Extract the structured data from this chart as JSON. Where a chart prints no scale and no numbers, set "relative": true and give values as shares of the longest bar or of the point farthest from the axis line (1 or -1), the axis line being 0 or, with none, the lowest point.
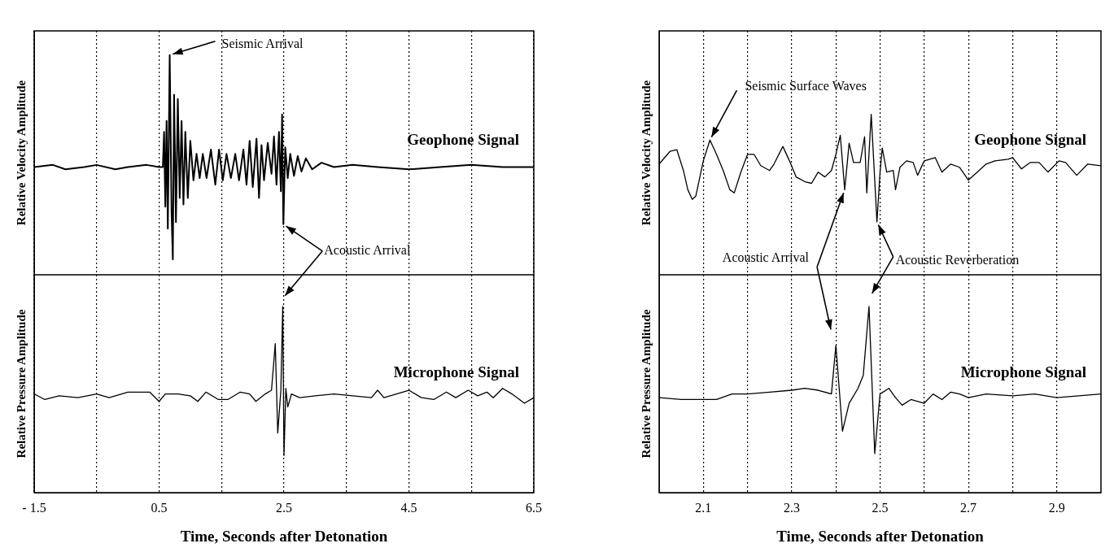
{
  "chart_data": [
    {
      "type": "line",
      "ylabel": "Relative Velocity Amplitude",
      "relative": true,
      "grid": "x",
      "tick_labels": false,
      "xlim": [
        -1.5,
        6.5
      ],
      "xticks": [
        -1.5,
        {
          "value": -0.5,
          "label": null
        },
        0.5,
        {
          "value": 1.5,
          "label": null
        },
        2.5,
        {
          "value": 3.5,
          "label": null
        },
        4.5,
        {
          "value": 5.5,
          "label": null
        },
        6.5
      ],
      "annotations": [
        {
          "text": "Seismic Arrival",
          "x": 0.67,
          "y": 1
        },
        {
          "text": "Acoustic Arrival",
          "x": 2.49,
          "y": 0.23
        }
      ],
      "series": [
        {
          "name": "Geophone Signal",
          "color": "#000000",
          "x": [
            -1.5,
            -1.2,
            -1.0,
            -0.7,
            -0.5,
            -0.2,
            0,
            0.3,
            0.5,
            0.56,
            0.58,
            0.6,
            0.62,
            0.64,
            0.67,
            0.7,
            0.72,
            0.74,
            0.77,
            0.8,
            0.83,
            0.86,
            0.89,
            0.92,
            0.96,
            1.0,
            1.05,
            1.1,
            1.15,
            1.2,
            1.26,
            1.33,
            1.4,
            1.46,
            1.52,
            1.58,
            1.65,
            1.72,
            1.78,
            1.85,
            1.9,
            1.95,
            2.0,
            2.06,
            2.1,
            2.14,
            2.18,
            2.24,
            2.3,
            2.34,
            2.38,
            2.42,
            2.45,
            2.47,
            2.49,
            2.52,
            2.56,
            2.6,
            2.66,
            2.72,
            2.78,
            2.85,
            2.95,
            3.1,
            3.3,
            3.6,
            4.0,
            4.5,
            5.0,
            5.5,
            6.0,
            6.5
          ],
          "values": [
            0.49,
            0.5,
            0.48,
            0.49,
            0.5,
            0.48,
            0.49,
            0.5,
            0.49,
            0.49,
            0.65,
            0.31,
            0.7,
            0.21,
            1.0,
            0.28,
            0.07,
            0.82,
            0.24,
            0.8,
            0.35,
            0.7,
            0.32,
            0.65,
            0.35,
            0.61,
            0.43,
            0.55,
            0.44,
            0.55,
            0.44,
            0.57,
            0.41,
            0.57,
            0.43,
            0.55,
            0.44,
            0.55,
            0.43,
            0.57,
            0.41,
            0.61,
            0.4,
            0.62,
            0.35,
            0.59,
            0.43,
            0.6,
            0.46,
            0.63,
            0.41,
            0.65,
            0.38,
            0.73,
            0.23,
            0.58,
            0.44,
            0.55,
            0.45,
            0.54,
            0.47,
            0.53,
            0.48,
            0.51,
            0.49,
            0.5,
            0.49,
            0.48,
            0.49,
            0.5,
            0.49,
            0.49
          ]
        }
      ]
    },
    {
      "type": "line",
      "ylabel": "Relative Pressure Amplitude",
      "xlabel": "Time, Seconds after Detonation",
      "relative": true,
      "grid": "x",
      "xlim": [
        -1.5,
        6.5
      ],
      "xticks": [
        {
          "value": -1.5,
          "label": "- 1.5"
        },
        {
          "value": -0.5,
          "label": null
        },
        0.5,
        {
          "value": 1.5,
          "label": null
        },
        2.5,
        {
          "value": 3.5,
          "label": null
        },
        4.5,
        {
          "value": 5.5,
          "label": null
        },
        6.5
      ],
      "series": [
        {
          "name": "Microphone Signal",
          "color": "#000000",
          "x": [
            -1.5,
            -1.33,
            -1.1,
            -0.8,
            -0.5,
            -0.3,
            0.0,
            0.2,
            0.35,
            0.5,
            0.6,
            0.8,
            1.0,
            1.12,
            1.25,
            1.45,
            1.6,
            1.8,
            1.95,
            2.05,
            2.2,
            2.3,
            2.36,
            2.4,
            2.45,
            2.48,
            2.5,
            2.53,
            2.56,
            2.62,
            2.75,
            3.0,
            3.3,
            3.6,
            3.9,
            4.0,
            4.1,
            4.3,
            4.5,
            4.7,
            4.9,
            5.1,
            5.25,
            5.45,
            5.6,
            5.75,
            5.85,
            6.0,
            6.15,
            6.35,
            6.5
          ],
          "values": [
            0.53,
            0.5,
            0.52,
            0.51,
            0.53,
            0.51,
            0.54,
            0.54,
            0.54,
            0.49,
            0.53,
            0.53,
            0.52,
            0.49,
            0.54,
            0.5,
            0.5,
            0.54,
            0.53,
            0.49,
            0.53,
            0.55,
            0.8,
            0.32,
            0.55,
            1.0,
            0.2,
            0.56,
            0.46,
            0.53,
            0.51,
            0.52,
            0.53,
            0.52,
            0.51,
            0.55,
            0.51,
            0.53,
            0.55,
            0.51,
            0.5,
            0.54,
            0.51,
            0.55,
            0.52,
            0.54,
            0.51,
            0.56,
            0.53,
            0.48,
            0.51
          ]
        }
      ]
    },
    {
      "type": "line",
      "ylabel": "Relative Velocity Amplitude",
      "relative": true,
      "grid": "x",
      "tick_labels": false,
      "xlim": [
        2.0,
        3.0
      ],
      "xticks": [
        2.1,
        {
          "value": 2.2,
          "label": null
        },
        2.3,
        {
          "value": 2.4,
          "label": null
        },
        2.5,
        {
          "value": 2.6,
          "label": null
        },
        2.7,
        {
          "value": 2.8,
          "label": null
        },
        2.9
      ],
      "annotations": [
        {
          "text": "Seismic Surface Waves",
          "x": 2.115,
          "y": 0.84
        },
        {
          "text": "Acoustic Arrival",
          "x": 2.42,
          "y": 0.53
        },
        {
          "text": "Acoustic Reverberation",
          "x": 2.493,
          "y": 0.33
        }
      ],
      "series": [
        {
          "name": "Geophone Signal",
          "color": "#000000",
          "x": [
            2.0,
            2.025,
            2.04,
            2.055,
            2.065,
            2.075,
            2.083,
            2.1,
            2.115,
            2.13,
            2.145,
            2.16,
            2.17,
            2.185,
            2.2,
            2.215,
            2.23,
            2.25,
            2.26,
            2.28,
            2.295,
            2.31,
            2.33,
            2.345,
            2.36,
            2.375,
            2.39,
            2.4,
            2.41,
            2.42,
            2.43,
            2.44,
            2.455,
            2.465,
            2.47,
            2.48,
            2.493,
            2.5,
            2.505,
            2.515,
            2.53,
            2.535,
            2.545,
            2.56,
            2.575,
            2.585,
            2.6,
            2.625,
            2.64,
            2.66,
            2.68,
            2.7,
            2.72,
            2.74,
            2.76,
            2.79,
            2.8,
            2.82,
            2.84,
            2.86,
            2.88,
            2.905,
            2.92,
            2.945,
            2.97,
            3.0
          ],
          "values": [
            0.69,
            0.77,
            0.78,
            0.65,
            0.53,
            0.47,
            0.49,
            0.71,
            0.84,
            0.75,
            0.65,
            0.53,
            0.51,
            0.64,
            0.75,
            0.75,
            0.68,
            0.65,
            0.69,
            0.8,
            0.71,
            0.61,
            0.58,
            0.57,
            0.64,
            0.61,
            0.65,
            0.75,
            0.87,
            0.53,
            0.82,
            0.7,
            0.7,
            0.86,
            0.51,
            1.0,
            0.33,
            0.64,
            0.79,
            0.64,
            0.65,
            0.53,
            0.67,
            0.71,
            0.7,
            0.62,
            0.71,
            0.73,
            0.64,
            0.69,
            0.67,
            0.59,
            0.64,
            0.69,
            0.71,
            0.72,
            0.73,
            0.66,
            0.7,
            0.7,
            0.64,
            0.71,
            0.7,
            0.62,
            0.69,
            0.68
          ]
        }
      ]
    },
    {
      "type": "line",
      "ylabel": "Relative Pressure Amplitude",
      "xlabel": "Time, Seconds after Detonation",
      "relative": true,
      "grid": "x",
      "xlim": [
        2.0,
        3.0
      ],
      "xticks": [
        2.1,
        {
          "value": 2.2,
          "label": null
        },
        2.3,
        {
          "value": 2.4,
          "label": null
        },
        2.5,
        {
          "value": 2.6,
          "label": null
        },
        2.7,
        {
          "value": 2.8,
          "label": null
        },
        2.9
      ],
      "series": [
        {
          "name": "Microphone Signal",
          "color": "#000000",
          "x": [
            2.0,
            2.05,
            2.1,
            2.13,
            2.165,
            2.2,
            2.25,
            2.3,
            2.33,
            2.36,
            2.39,
            2.4,
            2.415,
            2.43,
            2.45,
            2.462,
            2.475,
            2.488,
            2.5,
            2.52,
            2.535,
            2.55,
            2.57,
            2.6,
            2.62,
            2.64,
            2.66,
            2.68,
            2.7,
            2.74,
            2.8,
            2.85,
            2.9,
            2.95,
            3.0
          ],
          "values": [
            0.51,
            0.5,
            0.5,
            0.5,
            0.53,
            0.53,
            0.54,
            0.55,
            0.56,
            0.55,
            0.53,
            0.79,
            0.33,
            0.48,
            0.56,
            0.63,
            1.0,
            0.21,
            0.53,
            0.56,
            0.51,
            0.47,
            0.5,
            0.48,
            0.53,
            0.5,
            0.54,
            0.53,
            0.51,
            0.53,
            0.52,
            0.53,
            0.51,
            0.52,
            0.53
          ]
        }
      ]
    }
  ]
}
